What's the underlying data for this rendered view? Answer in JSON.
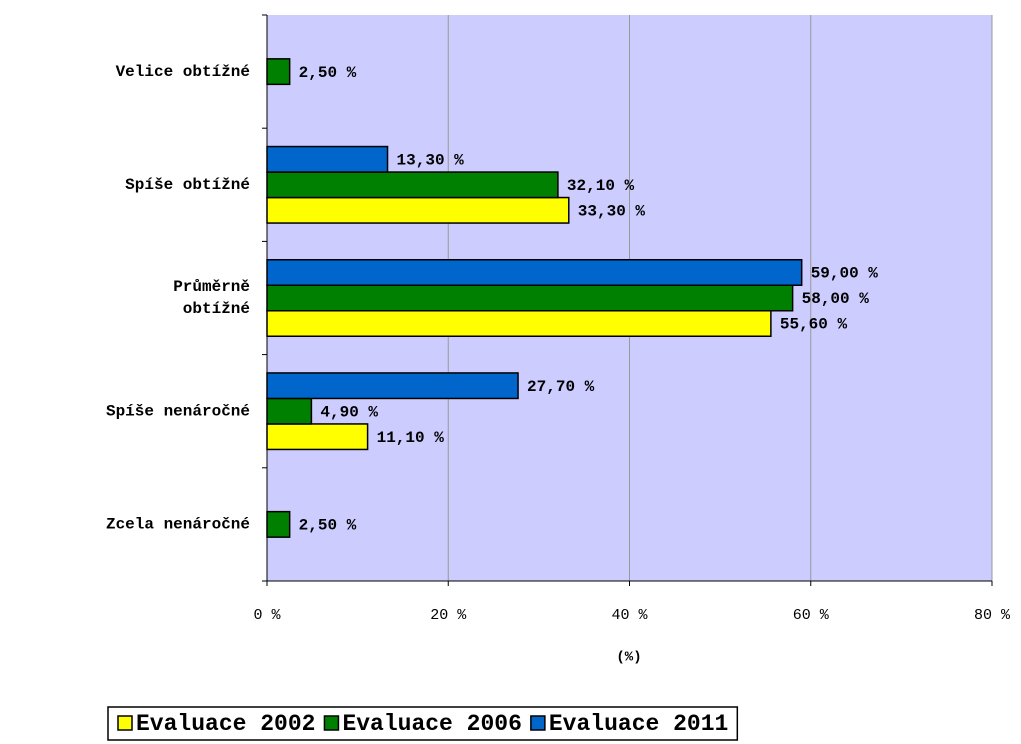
{
  "chart_data": {
    "type": "bar",
    "orientation": "horizontal",
    "categories": [
      "Velice obtížné",
      "Spíše obtížné",
      "Průměrně\nobtížné ",
      "Spíše nenáročné",
      "Zcela nenáročné"
    ],
    "series": [
      {
        "name": "Evaluace 2002",
        "color": "#ffff00",
        "values": [
          null,
          33.3,
          55.6,
          11.1,
          null
        ],
        "value_labels": [
          null,
          "33,30 %",
          "55,60 %",
          "11,10 %",
          null
        ]
      },
      {
        "name": "Evaluace 2006",
        "color": "#008000",
        "values": [
          2.5,
          32.1,
          58.0,
          4.9,
          2.5
        ],
        "value_labels": [
          "2,50 %",
          "32,10 %",
          "58,00 %",
          "4,90 %",
          "2,50 %"
        ]
      },
      {
        "name": "Evaluace 2011",
        "color": "#0066cc",
        "values": [
          null,
          13.3,
          59.0,
          27.7,
          null
        ],
        "value_labels": [
          null,
          "13,30 %",
          "59,00 %",
          "27,70 %",
          null
        ]
      }
    ],
    "xlabel": "(%)",
    "xlim": [
      0,
      80
    ],
    "xticks": [
      {
        "value": 0,
        "label": "0 %"
      },
      {
        "value": 20,
        "label": "20 %"
      },
      {
        "value": 40,
        "label": "40 %"
      },
      {
        "value": 60,
        "label": "60 %"
      },
      {
        "value": 80,
        "label": "80 %"
      }
    ],
    "grid": true,
    "plot_background": "#ccccff",
    "legend": "bottom"
  }
}
